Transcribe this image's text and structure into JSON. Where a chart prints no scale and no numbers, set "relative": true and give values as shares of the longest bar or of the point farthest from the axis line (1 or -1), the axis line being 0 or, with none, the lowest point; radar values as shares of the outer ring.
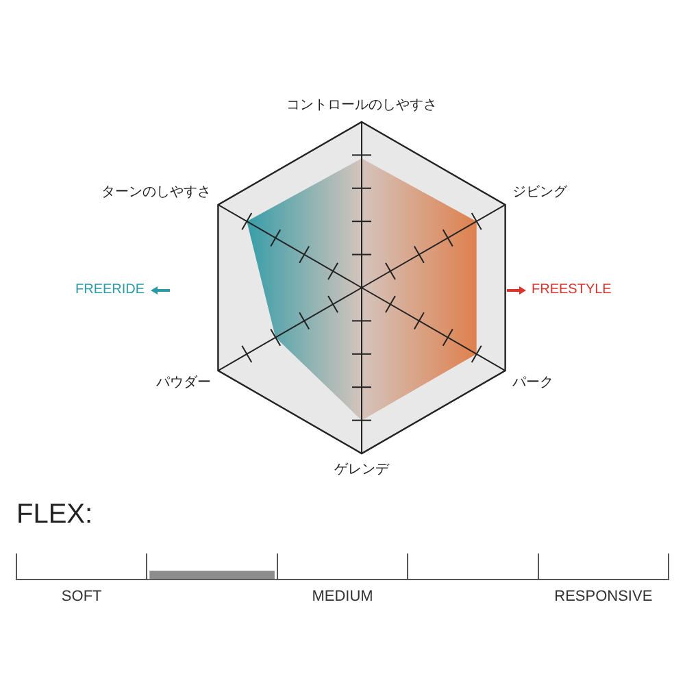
{
  "chart_data": [
    {
      "type": "radar",
      "relative": true,
      "categories": [
        "コントロールのしやすさ",
        "ジビング",
        "パーク",
        "ゲレンデ",
        "パウダー",
        "ターンのしやすさ"
      ],
      "series": [
        {
          "color": "#e07b45",
          "values": [
            0.78,
            0.8,
            0.8,
            0.8,
            0.6,
            0.8
          ]
        }
      ],
      "annotations": [
        "FREERIDE",
        "FREESTYLE"
      ],
      "legend": false
    },
    {
      "type": "bar",
      "relative": true,
      "title": "FLEX:",
      "categories": [
        "SOFT",
        null,
        "MEDIUM",
        null,
        "RESPONSIVE"
      ],
      "series": [
        {
          "color": "#8c8c8c",
          "values": [
            null,
            1,
            null,
            null,
            null
          ]
        }
      ],
      "grid": "x",
      "legend": false
    }
  ]
}
